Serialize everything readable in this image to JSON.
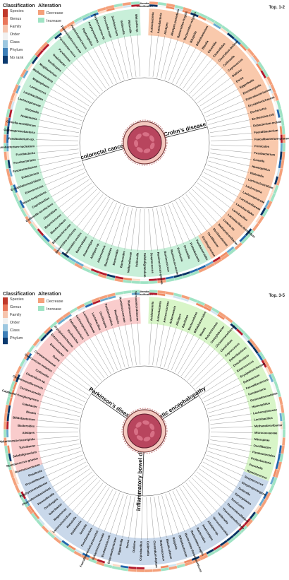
{
  "panels": [
    {
      "id": "top",
      "tag": "Top. 1-2",
      "ring_titles": {
        "outer": "Alteration",
        "inner": "Classification"
      },
      "legend": {
        "classification_title": "Classification",
        "classification_levels": [
          "Species",
          "Genus",
          "Family",
          "Order",
          "Class",
          "Phylum",
          "No rank"
        ],
        "alteration_title": "Alteration",
        "alteration_levels": [
          {
            "label": "Decrease",
            "color": "#f4a07a"
          },
          {
            "label": "Increase",
            "color": "#9fe3c4"
          }
        ]
      },
      "sectors": [
        {
          "label": "Crohn's disease",
          "color": "#f9c9ac",
          "start": 2,
          "end": 150
        },
        {
          "label": "colorectal cancer",
          "color": "#c8efd9",
          "start": 150,
          "end": 358
        }
      ],
      "taxa": [
        "Actinobacteria",
        "Actinobacteria",
        "Alistipes",
        "Alistipes-putredinis",
        "Bacteroides-fragilis",
        "Bacteroides-vulgatus",
        "Bilophila",
        "Bifidobacterium",
        "Blautia",
        "Clostridia",
        "Clostridiales",
        "Clostridium-bolteae",
        "Collinsella",
        "Coprococcus",
        "Dialister",
        "Dorea",
        "Eggerthella",
        "Eisenbergiella",
        "Enterobacteriaceae",
        "Erysipelotrichaceae",
        "Escherichia",
        "Escherichia-coli",
        "Eubacterium-rectale",
        "Faecalibacterium",
        "Faecalibacterium-prausnitzii",
        "Firmicutes",
        "Fusobacterium",
        "Gemella",
        "Haemophilus",
        "Klebsiella",
        "Lachnoclostridium",
        "Lachnospira",
        "Lachnospiraceae",
        "Lactobacillaceae",
        "Lactobacillales",
        "Lactobacillus",
        "Lactobacillus-fermentum",
        "Listeria-sp.",
        "Methanobrevibacter",
        "Muribaculaceae",
        "Oscillibacter",
        "Oscillospiraceae",
        "Parabacteroides",
        "Proteobacteria",
        "Prevotella",
        "Roseburia",
        "Ruminococcaceae",
        "Ruminococcus",
        "Ruminococcus-gnavus",
        "Streptococcus",
        "Subdoligranulum",
        "Veillonella",
        "Veillonellaceae",
        "Bacteroides",
        "Bacteroidia",
        "Bacteroidetes",
        "Akkermansia",
        "Alistipes-sp.",
        "Anaerostipes",
        "Bacteroidales",
        "Bacteroides-ovatus",
        "Bacteroides-uniformis",
        "Bifidobacteriaceae",
        "Blautia-obeum",
        "Butyricicoccus",
        "Clostridium",
        "Collinsella-aerofaciens",
        "Coprobacillus",
        "Dorea-longicatena",
        "Enterococcus",
        "Erysipelatoclostridium",
        "Eubacterium",
        "Fusobacteriaceae",
        "Fusobacteriales",
        "Fusobacteriia",
        "Fusobacterium-nucleatum",
        "Fusobacterium-sp.",
        "Gammaproteobacteria",
        "Gemella-morbillorum",
        "Holdemania",
        "Klebsiella",
        "Lachnospiraceae",
        "Lactobacillales",
        "Lactococcus",
        "Megasphaera",
        "Methanobacteria",
        "Mogibacterium",
        "Oscillospira",
        "Oxalobacter",
        "Parvimonas",
        "Parvimonas-micra",
        "Peptostreptococcaceae",
        "Peptostreptococcus",
        "Peptoniphilus",
        "Porphyromonas",
        "Porphyromonas-sp.",
        "Prevotella-copri",
        "Solobacterium",
        "Veillonella",
        "Weissella",
        "Weissella-sp."
      ]
    },
    {
      "id": "bottom",
      "tag": "Top. 3-5",
      "ring_titles": {
        "outer": "Alteration",
        "inner": "Classification"
      },
      "legend": {
        "classification_title": "Classification",
        "classification_levels": [
          "Species",
          "Genus",
          "Family",
          "Order",
          "Class",
          "Phylum"
        ],
        "alteration_title": "Alteration",
        "alteration_levels": [
          {
            "label": "Decrease",
            "color": "#f4a07a"
          },
          {
            "label": "Increase",
            "color": "#9fe3c4"
          }
        ]
      },
      "sectors": [
        {
          "label": "hepatic encephalopathy",
          "color": "#d8f5c8",
          "start": 2,
          "end": 112
        },
        {
          "label": "inflammatory bowel disease",
          "color": "#c9d8ea",
          "start": 112,
          "end": 252
        },
        {
          "label": "Parkinson's disease",
          "color": "#f9cccc",
          "start": 252,
          "end": 358
        }
      ],
      "taxa": [
        "Acidobacteria",
        "Actinobacteria",
        "Aerococcaceae",
        "Akkermansia",
        "Alistipes",
        "Bacillales",
        "Bacteroidetes",
        "Bifidobacteriales",
        "Blautia",
        "Butyricimonas",
        "Campylobacter",
        "Christensenellaceae",
        "Clostridium",
        "Coprococcus",
        "Deferribacteres",
        "Desulfovibrio",
        "Enterococcus",
        "Erysipelotrichaceae",
        "Eubacterium",
        "Faecalibacterium",
        "Fusobacteria",
        "Gemmatimonadetes",
        "Haemophilus",
        "Lachnospiraceae",
        "Lactobacillus",
        "Methanobrevibacter",
        "Micrococcaceae",
        "Nitrospirae",
        "Oscillibacter",
        "Parabacteroides",
        "Proteobacteria",
        "Prevotella",
        "Ruminococcus",
        "Streptococcus",
        "Streptosporangium",
        "Sutterella",
        "Synergistetes",
        "Tenericutes",
        "Thermodesulfatator",
        "Thermodesulfovibrio",
        "Veillonella",
        "Verrucomicrobia",
        "Alistipes-sp.",
        "Anaerostipes",
        "Bacteroides",
        "Bacteroides-fragilis",
        "Bacteroides-thetaiotaomicron",
        "Bifidobacterium",
        "Bilophila",
        "Blautia-obeum",
        "Butyricicoccus",
        "Clostridium-leptum",
        "Collinsella",
        "Coprobacillus",
        "Dialister",
        "Dorea",
        "Eggerthella",
        "Enterobacteriaceae",
        "Escherichia-coli",
        "Eubacterium-rectale",
        "Faecalibacterium-prausnitzii",
        "Fusobacterium",
        "Gemella",
        "Holdemania",
        "Klebsiella",
        "Lachnoclostridium",
        "Megamonas",
        "Odoribacter",
        "Oscillospira",
        "Parasutterella",
        "Phascolarctobacterium",
        "Porphyromonadaceae",
        "Prevotellaceae",
        "Roseburia",
        "Ruminococcaceae",
        "Ruminococcus-gnavus",
        "Subdoligranulum",
        "Turicibacter",
        "Akkermansia-muciniphila",
        "Alistipes",
        "Bacteroides",
        "Bifidobacterium",
        "Blautia",
        "Catabacter",
        "Catabacter-hongkongensis",
        "Christensenella",
        "Christensenella-minuta",
        "Clostridium-sp.",
        "Collinsella",
        "Coprococcus-eutactus",
        "Coriobacteriaceae",
        "Dorea",
        "Enterobacter",
        "Enterococcaceae",
        "Erysipelotrichaceae",
        "Escherichia",
        "Faecalibacterium",
        "Lachnospiraceae",
        "Lactobacillaceae",
        "Lactobacillus",
        "Oscillospira",
        "Parabacteroides",
        "Roseburia",
        "Ruminococcaceae",
        "Ruminococcus",
        "Verrucomicrobiaceae"
      ]
    }
  ]
}
